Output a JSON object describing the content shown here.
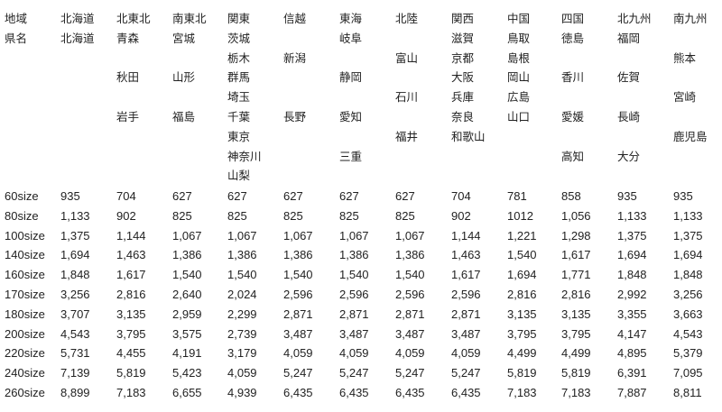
{
  "header_lines": [
    [
      "地域",
      "北海道",
      "北東北",
      "南東北",
      "関東",
      "信越",
      "東海",
      "北陸",
      "関西",
      "中国",
      "四国",
      "北九州",
      "南九州"
    ],
    [
      "県名",
      "北海道",
      "青森",
      "宮城",
      "茨城",
      "",
      "岐阜",
      "",
      "滋賀",
      "鳥取",
      "徳島",
      "福岡",
      ""
    ],
    [
      "",
      "",
      "",
      "",
      "栃木",
      "新潟",
      "",
      "富山",
      "京都",
      "島根",
      "",
      "",
      "熊本"
    ],
    [
      "",
      "",
      "秋田",
      "山形",
      "群馬",
      "",
      "静岡",
      "",
      "大阪",
      "岡山",
      "香川",
      "佐賀",
      ""
    ],
    [
      "",
      "",
      "",
      "",
      "埼玉",
      "",
      "",
      "石川",
      "兵庫",
      "広島",
      "",
      "",
      "宮崎"
    ],
    [
      "",
      "",
      "岩手",
      "福島",
      "千葉",
      "長野",
      "愛知",
      "",
      "奈良",
      "山口",
      "愛媛",
      "長崎",
      ""
    ],
    [
      "",
      "",
      "",
      "",
      "東京",
      "",
      "",
      "福井",
      "和歌山",
      "",
      "",
      "",
      "鹿児島"
    ],
    [
      "",
      "",
      "",
      "",
      "神奈川",
      "",
      "三重",
      "",
      "",
      "",
      "高知",
      "大分",
      ""
    ],
    [
      "",
      "",
      "",
      "",
      "山梨",
      "",
      "",
      "",
      "",
      "",
      "",
      "",
      ""
    ]
  ],
  "rows": [
    [
      "60size",
      "935",
      "704",
      "627",
      "627",
      "627",
      "627",
      "627",
      "704",
      "781",
      "858",
      "935",
      "935"
    ],
    [
      "80size",
      "1,133",
      "902",
      "825",
      "825",
      "825",
      "825",
      "825",
      "902",
      "1012",
      "1,056",
      "1,133",
      "1,133"
    ],
    [
      "100size",
      "1,375",
      "1,144",
      "1,067",
      "1,067",
      "1,067",
      "1,067",
      "1,067",
      "1,144",
      "1,221",
      "1,298",
      "1,375",
      "1,375"
    ],
    [
      "140size",
      "1,694",
      "1,463",
      "1,386",
      "1,386",
      "1,386",
      "1,386",
      "1,386",
      "1,463",
      "1,540",
      "1,617",
      "1,694",
      "1,694"
    ],
    [
      "160size",
      "1,848",
      "1,617",
      "1,540",
      "1,540",
      "1,540",
      "1,540",
      "1,540",
      "1,617",
      "1,694",
      "1,771",
      "1,848",
      "1,848"
    ],
    [
      "170size",
      "3,256",
      "2,816",
      "2,640",
      "2,024",
      "2,596",
      "2,596",
      "2,596",
      "2,596",
      "2,816",
      "2,816",
      "2,992",
      "3,256"
    ],
    [
      "180size",
      "3,707",
      "3,135",
      "2,959",
      "2,299",
      "2,871",
      "2,871",
      "2,871",
      "2,871",
      "3,135",
      "3,135",
      "3,355",
      "3,663"
    ],
    [
      "200size",
      "4,543",
      "3,795",
      "3,575",
      "2,739",
      "3,487",
      "3,487",
      "3,487",
      "3,487",
      "3,795",
      "3,795",
      "4,147",
      "4,543"
    ],
    [
      "220size",
      "5,731",
      "4,455",
      "4,191",
      "3,179",
      "4,059",
      "4,059",
      "4,059",
      "4,059",
      "4,499",
      "4,499",
      "4,895",
      "5,379"
    ],
    [
      "240size",
      "7,139",
      "5,819",
      "5,423",
      "4,059",
      "5,247",
      "5,247",
      "5,247",
      "5,247",
      "5,819",
      "5,819",
      "6,391",
      "7,095"
    ],
    [
      "260size",
      "8,899",
      "7,183",
      "6,655",
      "4,939",
      "6,435",
      "6,435",
      "6,435",
      "6,435",
      "7,183",
      "7,183",
      "7,887",
      "8,811"
    ]
  ]
}
